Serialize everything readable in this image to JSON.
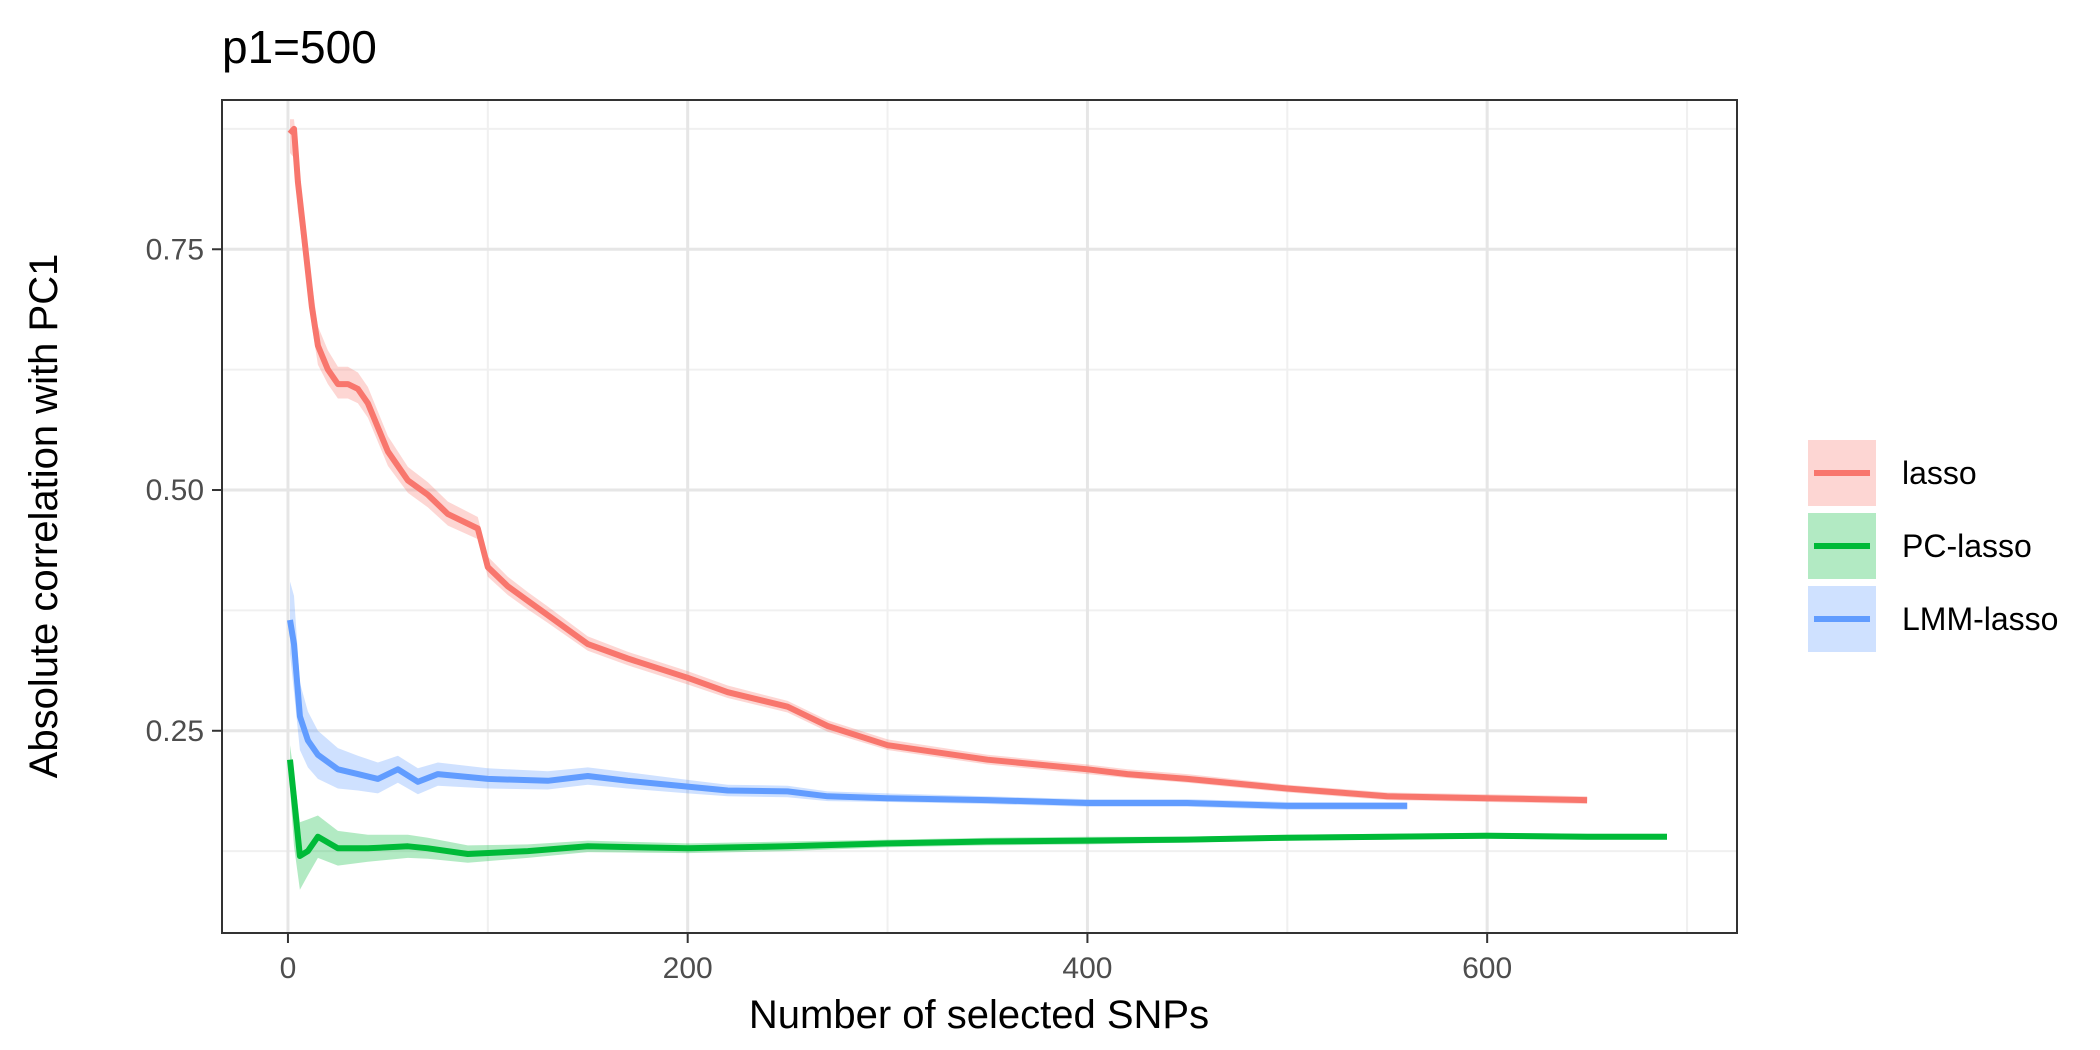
{
  "chart_data": {
    "type": "line",
    "title": "p1=500",
    "xlabel": "Number of selected SNPs",
    "ylabel": "Absolute correlation with PC1",
    "xlim": [
      -33,
      725
    ],
    "ylim": [
      0.04,
      0.905
    ],
    "x_ticks": [
      0,
      200,
      400,
      600
    ],
    "x_tick_labels": [
      "0",
      "200",
      "400",
      "600"
    ],
    "y_ticks": [
      0.25,
      0.5,
      0.75
    ],
    "y_tick_labels": [
      "0.25",
      "0.50",
      "0.75"
    ],
    "grid": true,
    "legend_position": "right",
    "series": [
      {
        "name": "lasso",
        "color": "#F8766D",
        "x": [
          1,
          3,
          5,
          8,
          12,
          15,
          20,
          25,
          30,
          35,
          40,
          50,
          60,
          70,
          80,
          95,
          100,
          110,
          120,
          130,
          150,
          170,
          200,
          220,
          250,
          270,
          300,
          350,
          400,
          420,
          450,
          500,
          550,
          600,
          650
        ],
        "y": [
          0.87,
          0.875,
          0.82,
          0.765,
          0.69,
          0.65,
          0.625,
          0.61,
          0.61,
          0.605,
          0.59,
          0.54,
          0.51,
          0.495,
          0.475,
          0.46,
          0.42,
          0.4,
          0.385,
          0.37,
          0.34,
          0.325,
          0.305,
          0.29,
          0.275,
          0.255,
          0.235,
          0.22,
          0.21,
          0.205,
          0.2,
          0.19,
          0.182,
          0.18,
          0.178
        ],
        "lower": [
          0.85,
          0.845,
          0.79,
          0.74,
          0.67,
          0.63,
          0.61,
          0.595,
          0.595,
          0.59,
          0.575,
          0.525,
          0.497,
          0.482,
          0.463,
          0.449,
          0.41,
          0.391,
          0.376,
          0.362,
          0.333,
          0.318,
          0.298,
          0.284,
          0.269,
          0.249,
          0.23,
          0.215,
          0.205,
          0.201,
          0.196,
          0.186,
          0.178,
          0.176,
          0.174
        ],
        "upper": [
          0.885,
          0.885,
          0.845,
          0.79,
          0.715,
          0.67,
          0.645,
          0.628,
          0.628,
          0.622,
          0.607,
          0.556,
          0.524,
          0.508,
          0.488,
          0.472,
          0.431,
          0.41,
          0.394,
          0.379,
          0.348,
          0.332,
          0.312,
          0.297,
          0.281,
          0.261,
          0.241,
          0.225,
          0.215,
          0.21,
          0.205,
          0.194,
          0.186,
          0.184,
          0.182
        ]
      },
      {
        "name": "PC-lasso",
        "color": "#00BA38",
        "x": [
          1,
          3,
          6,
          10,
          15,
          25,
          40,
          60,
          70,
          90,
          120,
          150,
          200,
          250,
          300,
          350,
          400,
          450,
          500,
          550,
          600,
          650,
          690
        ],
        "y": [
          0.22,
          0.18,
          0.12,
          0.125,
          0.14,
          0.128,
          0.128,
          0.13,
          0.128,
          0.122,
          0.125,
          0.13,
          0.128,
          0.13,
          0.133,
          0.135,
          0.136,
          0.137,
          0.139,
          0.14,
          0.141,
          0.14,
          0.14
        ],
        "lower": [
          0.19,
          0.13,
          0.085,
          0.1,
          0.118,
          0.11,
          0.114,
          0.118,
          0.117,
          0.113,
          0.118,
          0.124,
          0.123,
          0.125,
          0.129,
          0.131,
          0.132,
          0.134,
          0.136,
          0.137,
          0.138,
          0.137,
          0.137
        ],
        "upper": [
          0.235,
          0.205,
          0.155,
          0.158,
          0.162,
          0.146,
          0.142,
          0.142,
          0.139,
          0.131,
          0.132,
          0.136,
          0.133,
          0.135,
          0.137,
          0.139,
          0.14,
          0.14,
          0.142,
          0.143,
          0.144,
          0.143,
          0.143
        ]
      },
      {
        "name": "LMM-lasso",
        "color": "#619CFF",
        "x": [
          1,
          3,
          6,
          10,
          15,
          25,
          35,
          45,
          55,
          65,
          75,
          100,
          130,
          150,
          170,
          200,
          220,
          250,
          270,
          300,
          350,
          400,
          450,
          500,
          530,
          560
        ],
        "y": [
          0.365,
          0.34,
          0.265,
          0.24,
          0.225,
          0.21,
          0.205,
          0.2,
          0.21,
          0.197,
          0.205,
          0.2,
          0.198,
          0.203,
          0.198,
          0.192,
          0.188,
          0.187,
          0.182,
          0.18,
          0.178,
          0.175,
          0.175,
          0.172,
          0.172,
          0.172
        ],
        "lower": [
          0.33,
          0.29,
          0.23,
          0.212,
          0.2,
          0.19,
          0.188,
          0.185,
          0.196,
          0.184,
          0.193,
          0.19,
          0.189,
          0.194,
          0.19,
          0.185,
          0.182,
          0.181,
          0.177,
          0.176,
          0.174,
          0.171,
          0.171,
          0.168,
          0.168,
          0.168
        ],
        "upper": [
          0.405,
          0.39,
          0.3,
          0.27,
          0.25,
          0.232,
          0.224,
          0.217,
          0.224,
          0.211,
          0.217,
          0.211,
          0.208,
          0.212,
          0.207,
          0.199,
          0.194,
          0.193,
          0.187,
          0.185,
          0.182,
          0.179,
          0.179,
          0.176,
          0.176,
          0.176
        ]
      }
    ]
  }
}
